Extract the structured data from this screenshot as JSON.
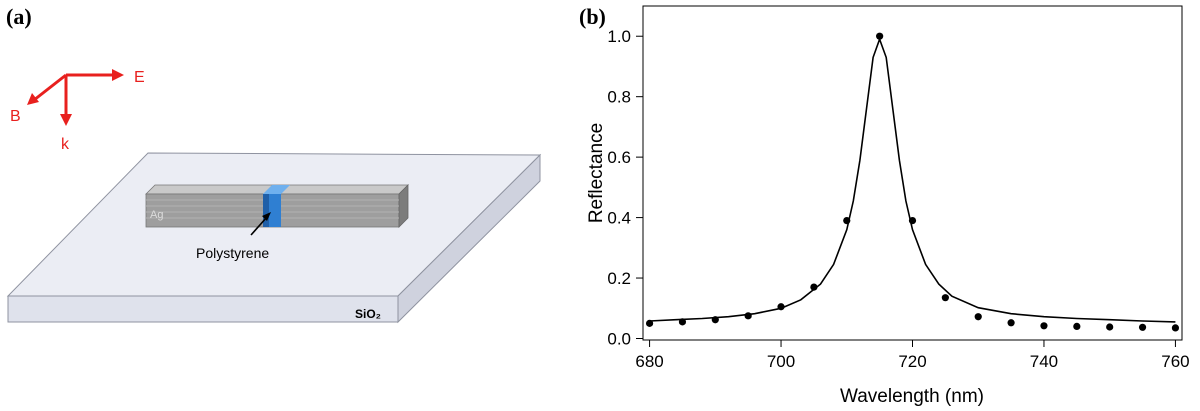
{
  "panel_a": {
    "label": "(a)",
    "axes": {
      "e_label": "E",
      "b_label": "B",
      "k_label": "k"
    },
    "rod_label": "Ag",
    "gap_label": "Polystyrene",
    "substrate_label": "SiO₂",
    "colors": {
      "arrows": "#e8201e",
      "rod": "#9e9e9e",
      "gap": "#2f7fd2",
      "substrate": "#e3e5ee"
    }
  },
  "panel_b": {
    "label": "(b)"
  },
  "chart_data": {
    "type": "scatter",
    "xlabel": "Wavelength (nm)",
    "ylabel": "Reflectance",
    "xlim": [
      679,
      761
    ],
    "ylim": [
      -0.005,
      1.1
    ],
    "x_ticks": [
      680,
      700,
      720,
      740,
      760
    ],
    "y_ticks": [
      0.0,
      0.2,
      0.4,
      0.6,
      0.8,
      1.0
    ],
    "x_tick_labels": [
      "680",
      "700",
      "720",
      "740",
      "760"
    ],
    "y_tick_labels": [
      "0.0",
      "0.2",
      "0.4",
      "0.6",
      "0.8",
      "1.0"
    ],
    "grid": false,
    "series": [
      {
        "kind": "points",
        "x": [
          680,
          685,
          690,
          695,
          700,
          705,
          710,
          715,
          720,
          725,
          730,
          735,
          740,
          745,
          750,
          755,
          760
        ],
        "y": [
          0.05,
          0.055,
          0.062,
          0.075,
          0.105,
          0.17,
          0.39,
          1.0,
          0.39,
          0.135,
          0.072,
          0.052,
          0.042,
          0.04,
          0.038,
          0.037,
          0.035
        ],
        "color": "#000000"
      },
      {
        "kind": "line",
        "x": [
          680,
          684,
          688,
          692,
          696,
          700,
          703,
          706,
          708,
          710,
          711,
          712,
          713,
          714,
          715,
          716,
          717,
          718,
          719,
          720,
          722,
          724,
          726,
          730,
          735,
          740,
          745,
          750,
          755,
          760
        ],
        "y": [
          0.058,
          0.062,
          0.066,
          0.072,
          0.082,
          0.1,
          0.128,
          0.18,
          0.245,
          0.36,
          0.455,
          0.59,
          0.76,
          0.93,
          0.99,
          0.93,
          0.76,
          0.59,
          0.455,
          0.36,
          0.245,
          0.18,
          0.14,
          0.102,
          0.082,
          0.072,
          0.066,
          0.062,
          0.058,
          0.055
        ],
        "color": "#000000"
      }
    ]
  }
}
